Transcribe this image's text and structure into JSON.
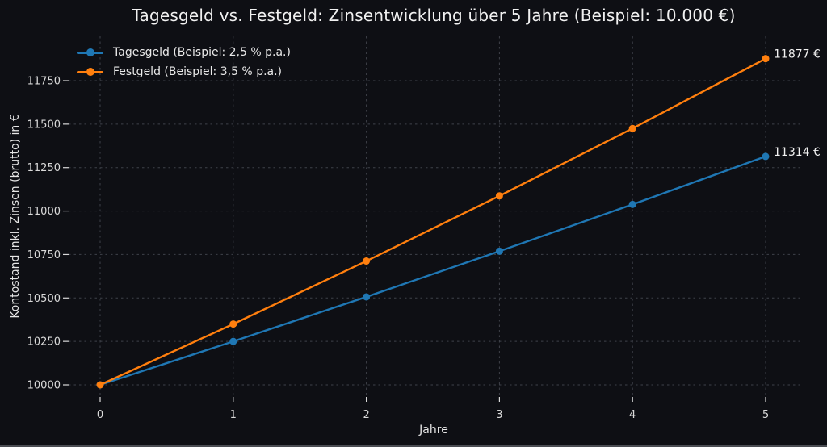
{
  "figure": {
    "background": "#0e0f14",
    "grid_color": "#3f424a",
    "tick_color": "#d9d9d9",
    "text_color": "#f1f1f1"
  },
  "chart_data": {
    "type": "line",
    "title": "Tagesgeld vs. Festgeld: Zinsentwicklung über 5 Jahre (Beispiel: 10.000 €)",
    "xlabel": "Jahre",
    "ylabel": "Kontostand inkl. Zinsen (brutto) in €",
    "x": [
      0,
      1,
      2,
      3,
      4,
      5
    ],
    "xticks": [
      "0",
      "1",
      "2",
      "3",
      "4",
      "5"
    ],
    "yticks": [
      10000,
      10250,
      10500,
      10750,
      11000,
      11250,
      11500,
      11750
    ],
    "ylim": [
      10000,
      11900
    ],
    "grid": true,
    "grid_style": "dashed",
    "legend_position": "upper-left",
    "series": [
      {
        "name": "Tagesgeld (Beispiel: 2,5 % p.a.)",
        "color": "#1f77b4",
        "values": [
          10000,
          10250,
          10506.25,
          10768.91,
          11038.13,
          11314.08
        ],
        "end_label": "11314 €"
      },
      {
        "name": "Festgeld (Beispiel: 3,5 % p.a.)",
        "color": "#ff7f0e",
        "values": [
          10000,
          10350,
          10712.25,
          11087.18,
          11475.23,
          11876.86
        ],
        "end_label": "11877 €"
      }
    ]
  }
}
